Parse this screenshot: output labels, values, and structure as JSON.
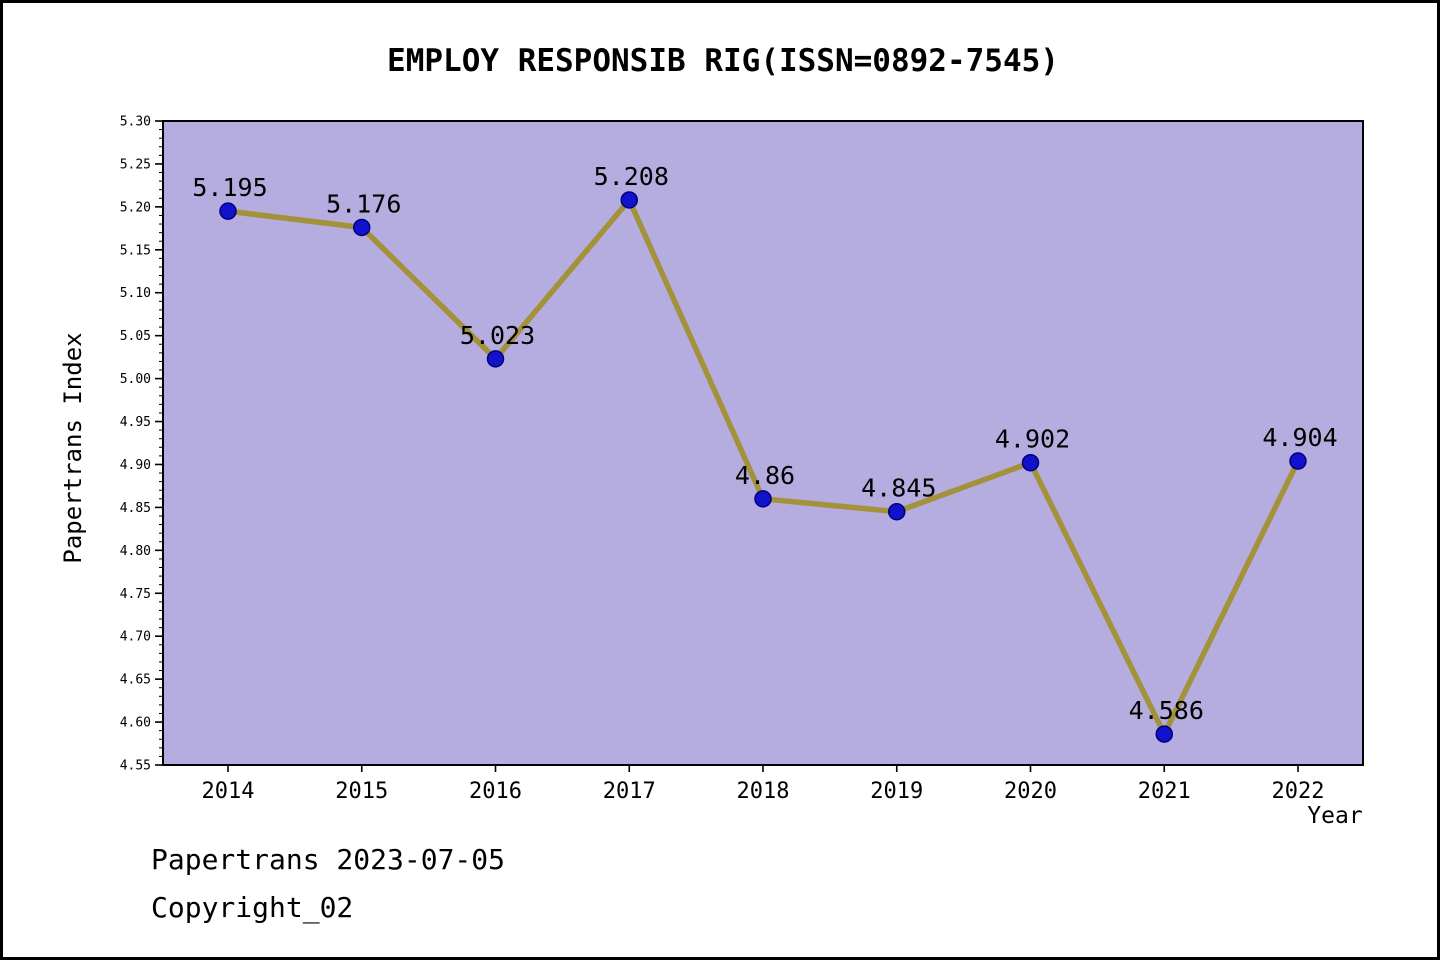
{
  "chart_data": {
    "type": "line",
    "title": "EMPLOY RESPONSIB RIG(ISSN=0892-7545)",
    "xlabel": "Year",
    "ylabel": "Papertrans Index",
    "categories": [
      "2014",
      "2015",
      "2016",
      "2017",
      "2018",
      "2019",
      "2020",
      "2021",
      "2022"
    ],
    "values": [
      5.195,
      5.176,
      5.023,
      5.208,
      4.86,
      4.845,
      4.902,
      4.586,
      4.904
    ],
    "point_labels": [
      "5.195",
      "5.176",
      "5.023",
      "5.208",
      "4.86",
      "4.845",
      "4.902",
      "4.586",
      "4.904"
    ],
    "ylim": [
      4.55,
      5.3
    ],
    "yticks": [
      "4.55",
      "4.60",
      "4.65",
      "4.70",
      "4.75",
      "4.80",
      "4.85",
      "4.90",
      "4.95",
      "5.00",
      "5.05",
      "5.10",
      "5.15",
      "5.20",
      "5.25",
      "5.30"
    ],
    "yminor_step": 0.01,
    "grid": false,
    "legend": null,
    "colors": {
      "plot_background": "#b5addf",
      "line": "#a3923a",
      "marker_fill": "#1212cc",
      "marker_edge": "#00007a",
      "axis": "#000000",
      "text": "#000000"
    }
  },
  "footer": {
    "line1": "Papertrans 2023-07-05",
    "line2": "Copyright_02"
  }
}
